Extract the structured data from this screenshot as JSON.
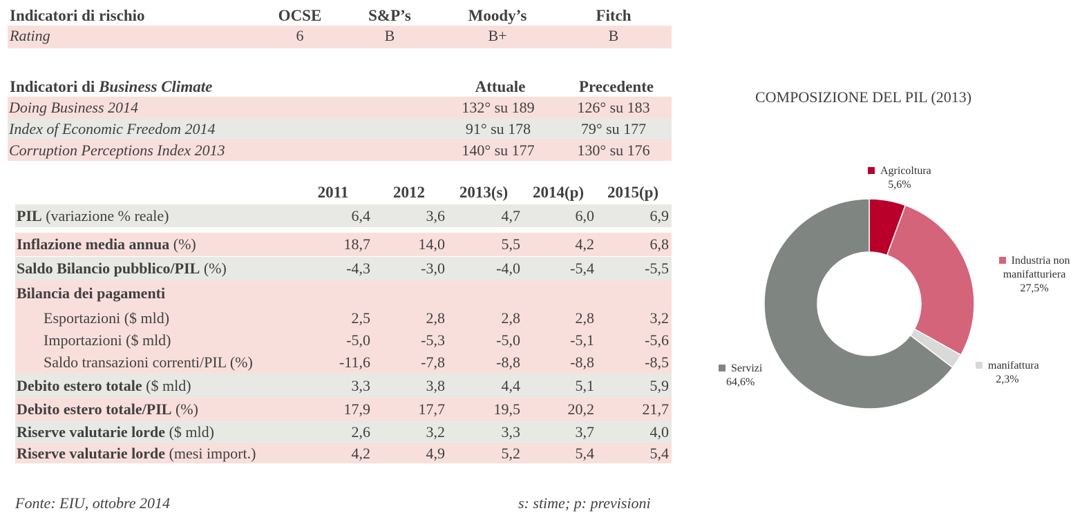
{
  "risk": {
    "title": "Indicatori di rischio",
    "columns": [
      "OCSE",
      "S&P’s",
      "Moody’s",
      "Fitch"
    ],
    "row_label": "Rating",
    "values": [
      "6",
      "B",
      "B+",
      "B"
    ]
  },
  "business": {
    "title_prefix": "Indicatori di ",
    "title_emph": "Business Climate",
    "col_current": "Attuale",
    "col_previous": "Precedente",
    "rows": [
      {
        "label": "Doing Business 2014",
        "current": "132° su 189",
        "previous": "126° su 183"
      },
      {
        "label": "Index of Economic Freedom 2014",
        "current": "91° su 178",
        "previous": "79° su 177"
      },
      {
        "label": "Corruption Perceptions Index 2013",
        "current": "140° su 177",
        "previous": "130° su 176"
      }
    ]
  },
  "macro": {
    "years": [
      "2011",
      "2012",
      "2013(s)",
      "2014(p)",
      "2015(p)"
    ],
    "rows": [
      {
        "bold": "PIL",
        "rest": " (variazione % reale)",
        "values": [
          "6,4",
          "3,6",
          "4,7",
          "6,0",
          "6,9"
        ]
      },
      {
        "bold": "Inflazione media annua",
        "rest": " (%)",
        "values": [
          "18,7",
          "14,0",
          "5,5",
          "4,2",
          "6,8"
        ]
      },
      {
        "bold": "Saldo Bilancio pubblico/PIL",
        "rest": " (%)",
        "values": [
          "-4,3",
          "-3,0",
          "-4,0",
          "-5,4",
          "-5,5"
        ]
      },
      {
        "bold": "Bilancia dei pagamenti",
        "rest": "",
        "values": []
      },
      {
        "bold": "",
        "rest": "Esportazioni ($ mld)",
        "values": [
          "2,5",
          "2,8",
          "2,8",
          "2,8",
          "3,2"
        ]
      },
      {
        "bold": "",
        "rest": "Importazioni ($ mld)",
        "values": [
          "-5,0",
          "-5,3",
          "-5,0",
          "-5,1",
          "-5,6"
        ]
      },
      {
        "bold": "",
        "rest": "Saldo transazioni correnti/PIL (%)",
        "values": [
          "-11,6",
          "-7,8",
          "-8,8",
          "-8,8",
          "-8,5"
        ]
      },
      {
        "bold": "Debito estero totale",
        "rest": " ($ mld)",
        "values": [
          "3,3",
          "3,8",
          "4,4",
          "5,1",
          "5,9"
        ]
      },
      {
        "bold": "Debito estero totale/PIL",
        "rest": " (%)",
        "values": [
          "17,9",
          "17,7",
          "19,5",
          "20,2",
          "21,7"
        ]
      },
      {
        "bold": "Riserve valutarie lorde",
        "rest": " ($ mld)",
        "values": [
          "2,6",
          "3,2",
          "3,3",
          "3,7",
          "4,0"
        ]
      },
      {
        "bold": "Riserve valutarie lorde",
        "rest": " (mesi import.)",
        "values": [
          "4,2",
          "4,9",
          "5,2",
          "5,4",
          "5,4"
        ]
      }
    ]
  },
  "footer": {
    "source": "Fonte: EIU, ottobre 2014",
    "note": "s: stime; p: previsioni"
  },
  "chart_data": {
    "type": "pie",
    "donut": true,
    "title": "COMPOSIZIONE DEL PIL (2013)",
    "slices": [
      {
        "label": "Agricoltura",
        "value": 5.6,
        "display": "5,6%",
        "color": "#b8002a"
      },
      {
        "label": "Industria non manifatturiera",
        "label_line1": "Industria non",
        "label_line2": "manifatturiera",
        "value": 27.5,
        "display": "27,5%",
        "color": "#d4647a"
      },
      {
        "label": "manifattura",
        "value": 2.3,
        "display": "2,3%",
        "color": "#d9d9d9"
      },
      {
        "label": "Servizi",
        "value": 64.6,
        "display": "64,6%",
        "color": "#7f8581"
      }
    ]
  }
}
